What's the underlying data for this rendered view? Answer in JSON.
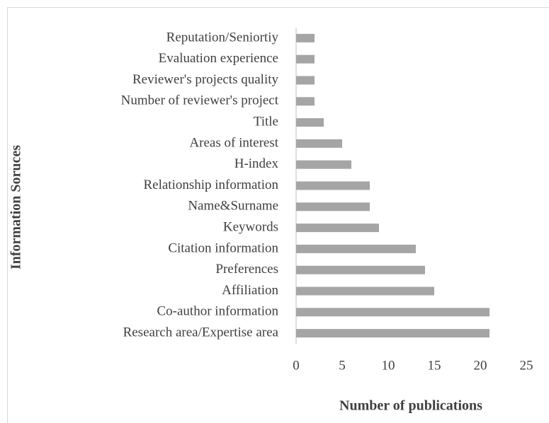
{
  "chart_data": {
    "type": "bar",
    "orientation": "horizontal",
    "categories": [
      "Reputation/Seniortiy",
      "Evaluation experience",
      "Reviewer's projects quality",
      "Number of reviewer's project",
      "Title",
      "Areas of interest",
      "H-index",
      "Relationship information",
      "Name&Surname",
      "Keywords",
      "Citation information",
      "Preferences",
      "Affiliation",
      "Co-author information",
      "Research area/Expertise area"
    ],
    "values": [
      2,
      2,
      2,
      2,
      3,
      5,
      6,
      8,
      8,
      9,
      13,
      14,
      15,
      21,
      21
    ],
    "color": "#a5a5a5",
    "x_label": "Number of publications",
    "y_label": "Information Soruces",
    "xlim": [
      0,
      25
    ],
    "xticks": [
      0,
      5,
      10,
      15,
      20,
      25
    ],
    "grid": false
  }
}
